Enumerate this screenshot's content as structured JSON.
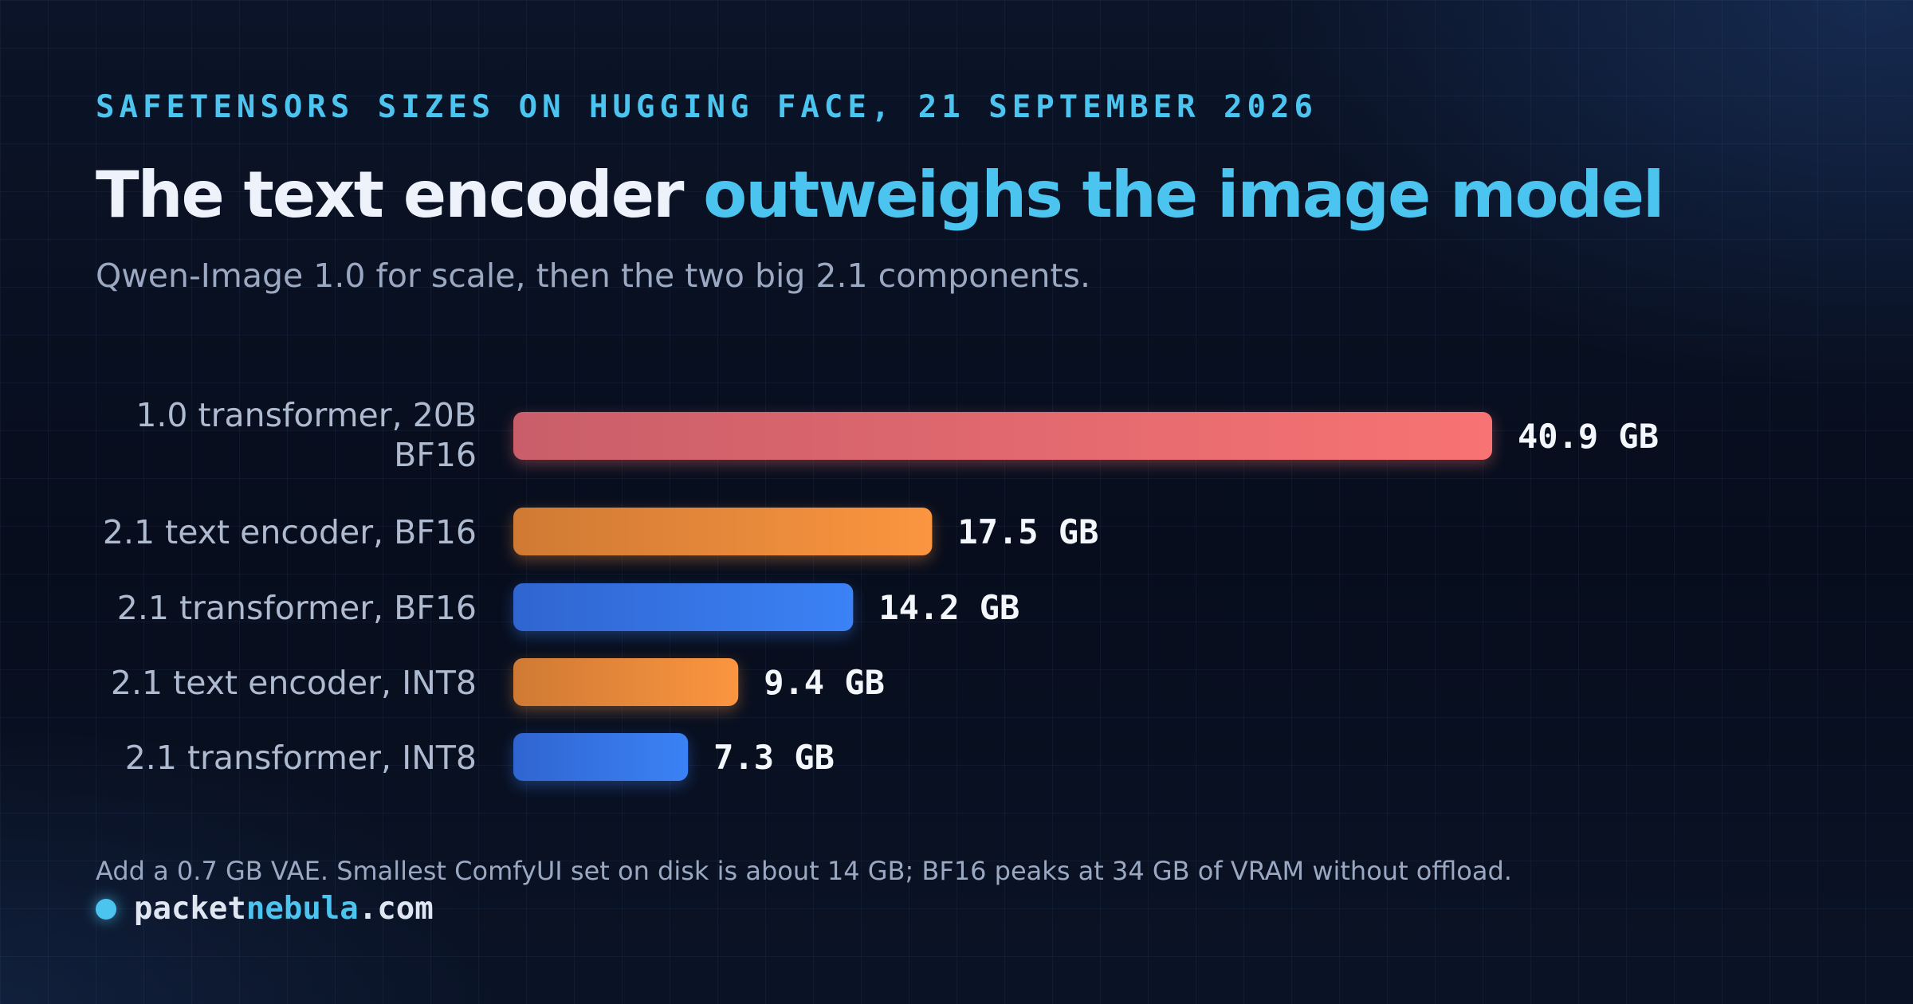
{
  "header": {
    "eyebrow": "SAFETENSORS SIZES ON HUGGING FACE, 21 SEPTEMBER 2026",
    "title_part1": "The text encoder ",
    "title_part2": "outweighs the image model",
    "subtitle": "Qwen-Image 1.0 for scale, then the two big 2.1 components."
  },
  "chart_data": {
    "type": "bar",
    "orientation": "horizontal",
    "title": "",
    "xlabel": "",
    "ylabel": "",
    "unit": "GB",
    "grid": true,
    "legend": "none",
    "categories": [
      [
        "1.0 transformer, 20B",
        "BF16"
      ],
      [
        "2.1 text encoder, BF16"
      ],
      [
        "2.1 transformer, BF16"
      ],
      [
        "2.1 text encoder, INT8"
      ],
      [
        "2.1 transformer, INT8"
      ]
    ],
    "values": [
      40.9,
      17.5,
      14.2,
      9.4,
      7.3
    ],
    "value_labels": [
      "40.9 GB",
      "17.5 GB",
      "14.2 GB",
      "9.4 GB",
      "7.3 GB"
    ],
    "bar_kinds": [
      "reference",
      "text-encoder",
      "transformer",
      "text-encoder",
      "transformer"
    ],
    "xlim": [
      0,
      40.9
    ],
    "colors": {
      "reference": [
        "#c95e6a",
        "#f87373"
      ],
      "text-encoder": [
        "#cf7a34",
        "#fb9540"
      ],
      "transformer": [
        "#3065d0",
        "#3b82f6"
      ]
    }
  },
  "footer": {
    "note": "Add a 0.7 GB VAE. Smallest ComfyUI set on disk is about 14 GB; BF16 peaks at 34 GB of VRAM without offload.",
    "brand_part1": "packet",
    "brand_part2": "nebula",
    "brand_part3": ".com"
  }
}
